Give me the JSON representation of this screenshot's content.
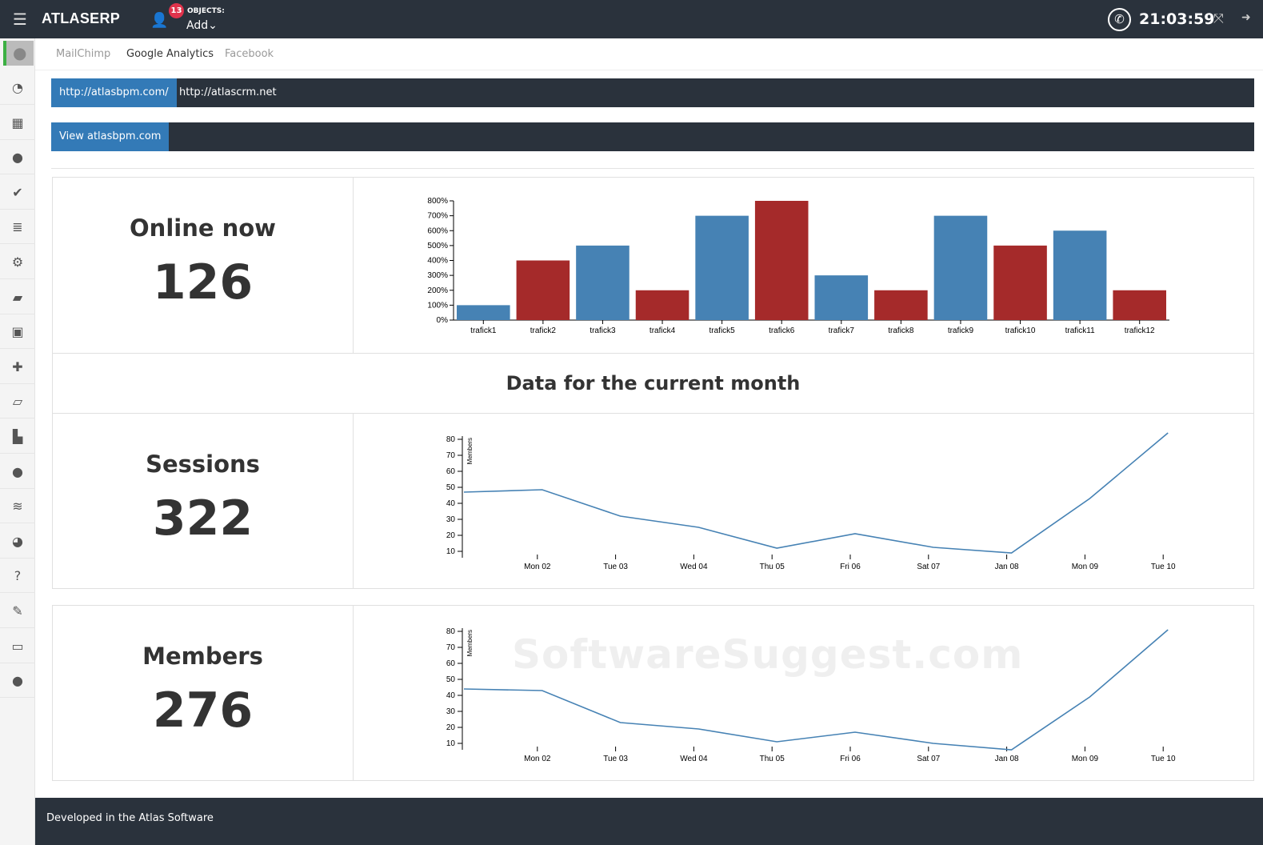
{
  "header": {
    "brand": "ATLASERP",
    "notifications": "13",
    "objects_label": "OBJECTS:",
    "add_label": "Add⌄",
    "time": "21:03:59"
  },
  "sidebar": {
    "items": [
      "dashboard-icon",
      "calendar-icon",
      "chat-icon",
      "check-icon",
      "list-icon",
      "gears-icon",
      "book-icon",
      "money-icon",
      "puzzle-icon",
      "folder-icon",
      "factory-chart-icon",
      "users-icon",
      "database-icon",
      "pie-chart-icon",
      "question-icon",
      "wrench-icon",
      "monitor-icon",
      "user-icon"
    ]
  },
  "tabs": [
    {
      "label": "MailChimp",
      "active": false
    },
    {
      "label": "Google Analytics",
      "active": true
    },
    {
      "label": "Facebook",
      "active": false
    }
  ],
  "sites": [
    {
      "label": "http://atlasbpm.com/",
      "active": true
    },
    {
      "label": "http://atlascrm.net",
      "active": false
    }
  ],
  "view_button": "View atlasbpm.com",
  "online": {
    "label": "Online now",
    "value": "126"
  },
  "month_title": "Data for the current month",
  "sessions": {
    "label": "Sessions",
    "value": "322"
  },
  "members": {
    "label": "Members",
    "value": "276"
  },
  "footer": "Developed in the Atlas Software",
  "watermark": "SoftwareSuggest.com",
  "colors": {
    "blue": "#4682b4",
    "red": "#a52a2a",
    "dark": "#2a323c",
    "accent": "#337ab7"
  },
  "chart_data": [
    {
      "type": "bar",
      "categories": [
        "trafick1",
        "trafick2",
        "trafick3",
        "trafick4",
        "trafick5",
        "trafick6",
        "trafick7",
        "trafick8",
        "trafick9",
        "trafick10",
        "trafick11",
        "trafick12"
      ],
      "values": [
        100,
        400,
        500,
        200,
        700,
        800,
        300,
        200,
        700,
        500,
        600,
        200
      ],
      "bar_colors": [
        "#4682b4",
        "#a52a2a",
        "#4682b4",
        "#a52a2a",
        "#4682b4",
        "#a52a2a",
        "#4682b4",
        "#a52a2a",
        "#4682b4",
        "#a52a2a",
        "#4682b4",
        "#a52a2a"
      ],
      "yticks": [
        "0%",
        "100%",
        "200%",
        "300%",
        "400%",
        "500%",
        "600%",
        "700%",
        "800%"
      ],
      "ylim": [
        0,
        800
      ],
      "yunit": "%"
    },
    {
      "type": "line",
      "ylabel": "Members",
      "xticks": [
        "Mon 02",
        "Tue 03",
        "Wed 04",
        "Thu 05",
        "Fri 06",
        "Sat 07",
        "Jan 08",
        "Mon 09",
        "Tue 10"
      ],
      "y": [
        47,
        48.5,
        32,
        25,
        12,
        21,
        12.5,
        9,
        43,
        84
      ],
      "yticks": [
        10,
        20,
        30,
        40,
        50,
        60,
        70,
        80
      ],
      "ylim": [
        6,
        82
      ],
      "color": "#4682b4"
    },
    {
      "type": "line",
      "ylabel": "Members",
      "xticks": [
        "Mon 02",
        "Tue 03",
        "Wed 04",
        "Thu 05",
        "Fri 06",
        "Sat 07",
        "Jan 08",
        "Mon 09",
        "Tue 10"
      ],
      "y": [
        44,
        43,
        23,
        19,
        11,
        17,
        10,
        6,
        39,
        81
      ],
      "yticks": [
        10,
        20,
        30,
        40,
        50,
        60,
        70,
        80
      ],
      "ylim": [
        6,
        82
      ],
      "color": "#4682b4"
    }
  ]
}
